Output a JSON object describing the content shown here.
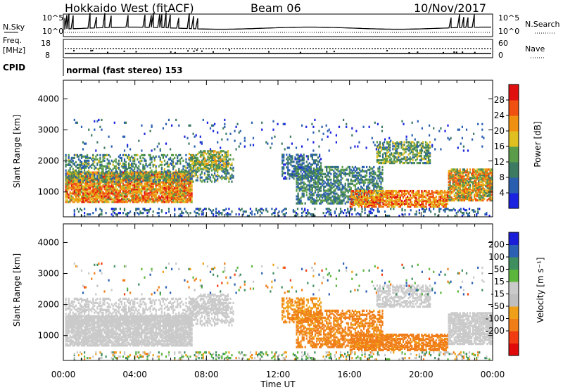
{
  "header": {
    "station": "Hokkaido West (fitACF)",
    "beam": "Beam 06",
    "date": "10/Nov/2017",
    "cpid_label": "CPID",
    "cpid_text": "normal (fast stereo) 153"
  },
  "strip": {
    "nsky_label": "N.Sky",
    "nsearch_label": "N.Search",
    "noise_tick_top": "10^5",
    "noise_tick_bottom": "10^0",
    "freq_label_1": "Freq.",
    "freq_label_2": "[MHz]",
    "freq_tick_top": "18",
    "freq_tick_bottom": "8",
    "nave_label": "Nave",
    "nave_tick_top": "60",
    "nave_tick_bottom": "0"
  },
  "colors": {
    "power": [
      "#1a22e0",
      "#2a5fb0",
      "#3d7a62",
      "#5a9c4a",
      "#e0c020",
      "#f09010",
      "#f05010",
      "#e01010"
    ],
    "velocity": [
      "#e00a0a",
      "#f03c10",
      "#f07d18",
      "#f0a018",
      "#bfbfbf",
      "#cacaca",
      "#5cb63c",
      "#3e8e60",
      "#2c60b4",
      "#1a1ed8"
    ]
  },
  "chart_data": [
    {
      "type": "heatmap",
      "title": "",
      "quantity": "Power",
      "xlabel": "",
      "ylabel": "Slant Range [km]",
      "x_ticks": [
        "00:00",
        "04:00",
        "08:00",
        "12:00",
        "16:00",
        "20:00",
        "00:00"
      ],
      "xlim_hours": [
        0,
        24
      ],
      "y_ticks": [
        1000,
        2000,
        3000,
        4000
      ],
      "ylim": [
        200,
        4600
      ],
      "colorbar": {
        "label": "Power [dB]",
        "ticks": [
          "4",
          "8",
          "12",
          "16",
          "20",
          "24",
          "28"
        ],
        "range": [
          0,
          32
        ]
      }
    },
    {
      "type": "heatmap",
      "title": "",
      "quantity": "Velocity",
      "xlabel": "Time UT",
      "ylabel": "Slant Range [km]",
      "x_ticks": [
        "00:00",
        "04:00",
        "08:00",
        "12:00",
        "16:00",
        "20:00",
        "00:00"
      ],
      "xlim_hours": [
        0,
        24
      ],
      "y_ticks": [
        1000,
        2000,
        3000,
        4000
      ],
      "ylim": [
        200,
        4600
      ],
      "colorbar": {
        "label": "Velocity [m s⁻¹]",
        "ticks": [
          "200",
          "100",
          "50",
          "15",
          "-15",
          "-50",
          "-100",
          "-200"
        ],
        "range": [
          -250,
          250
        ]
      }
    }
  ]
}
